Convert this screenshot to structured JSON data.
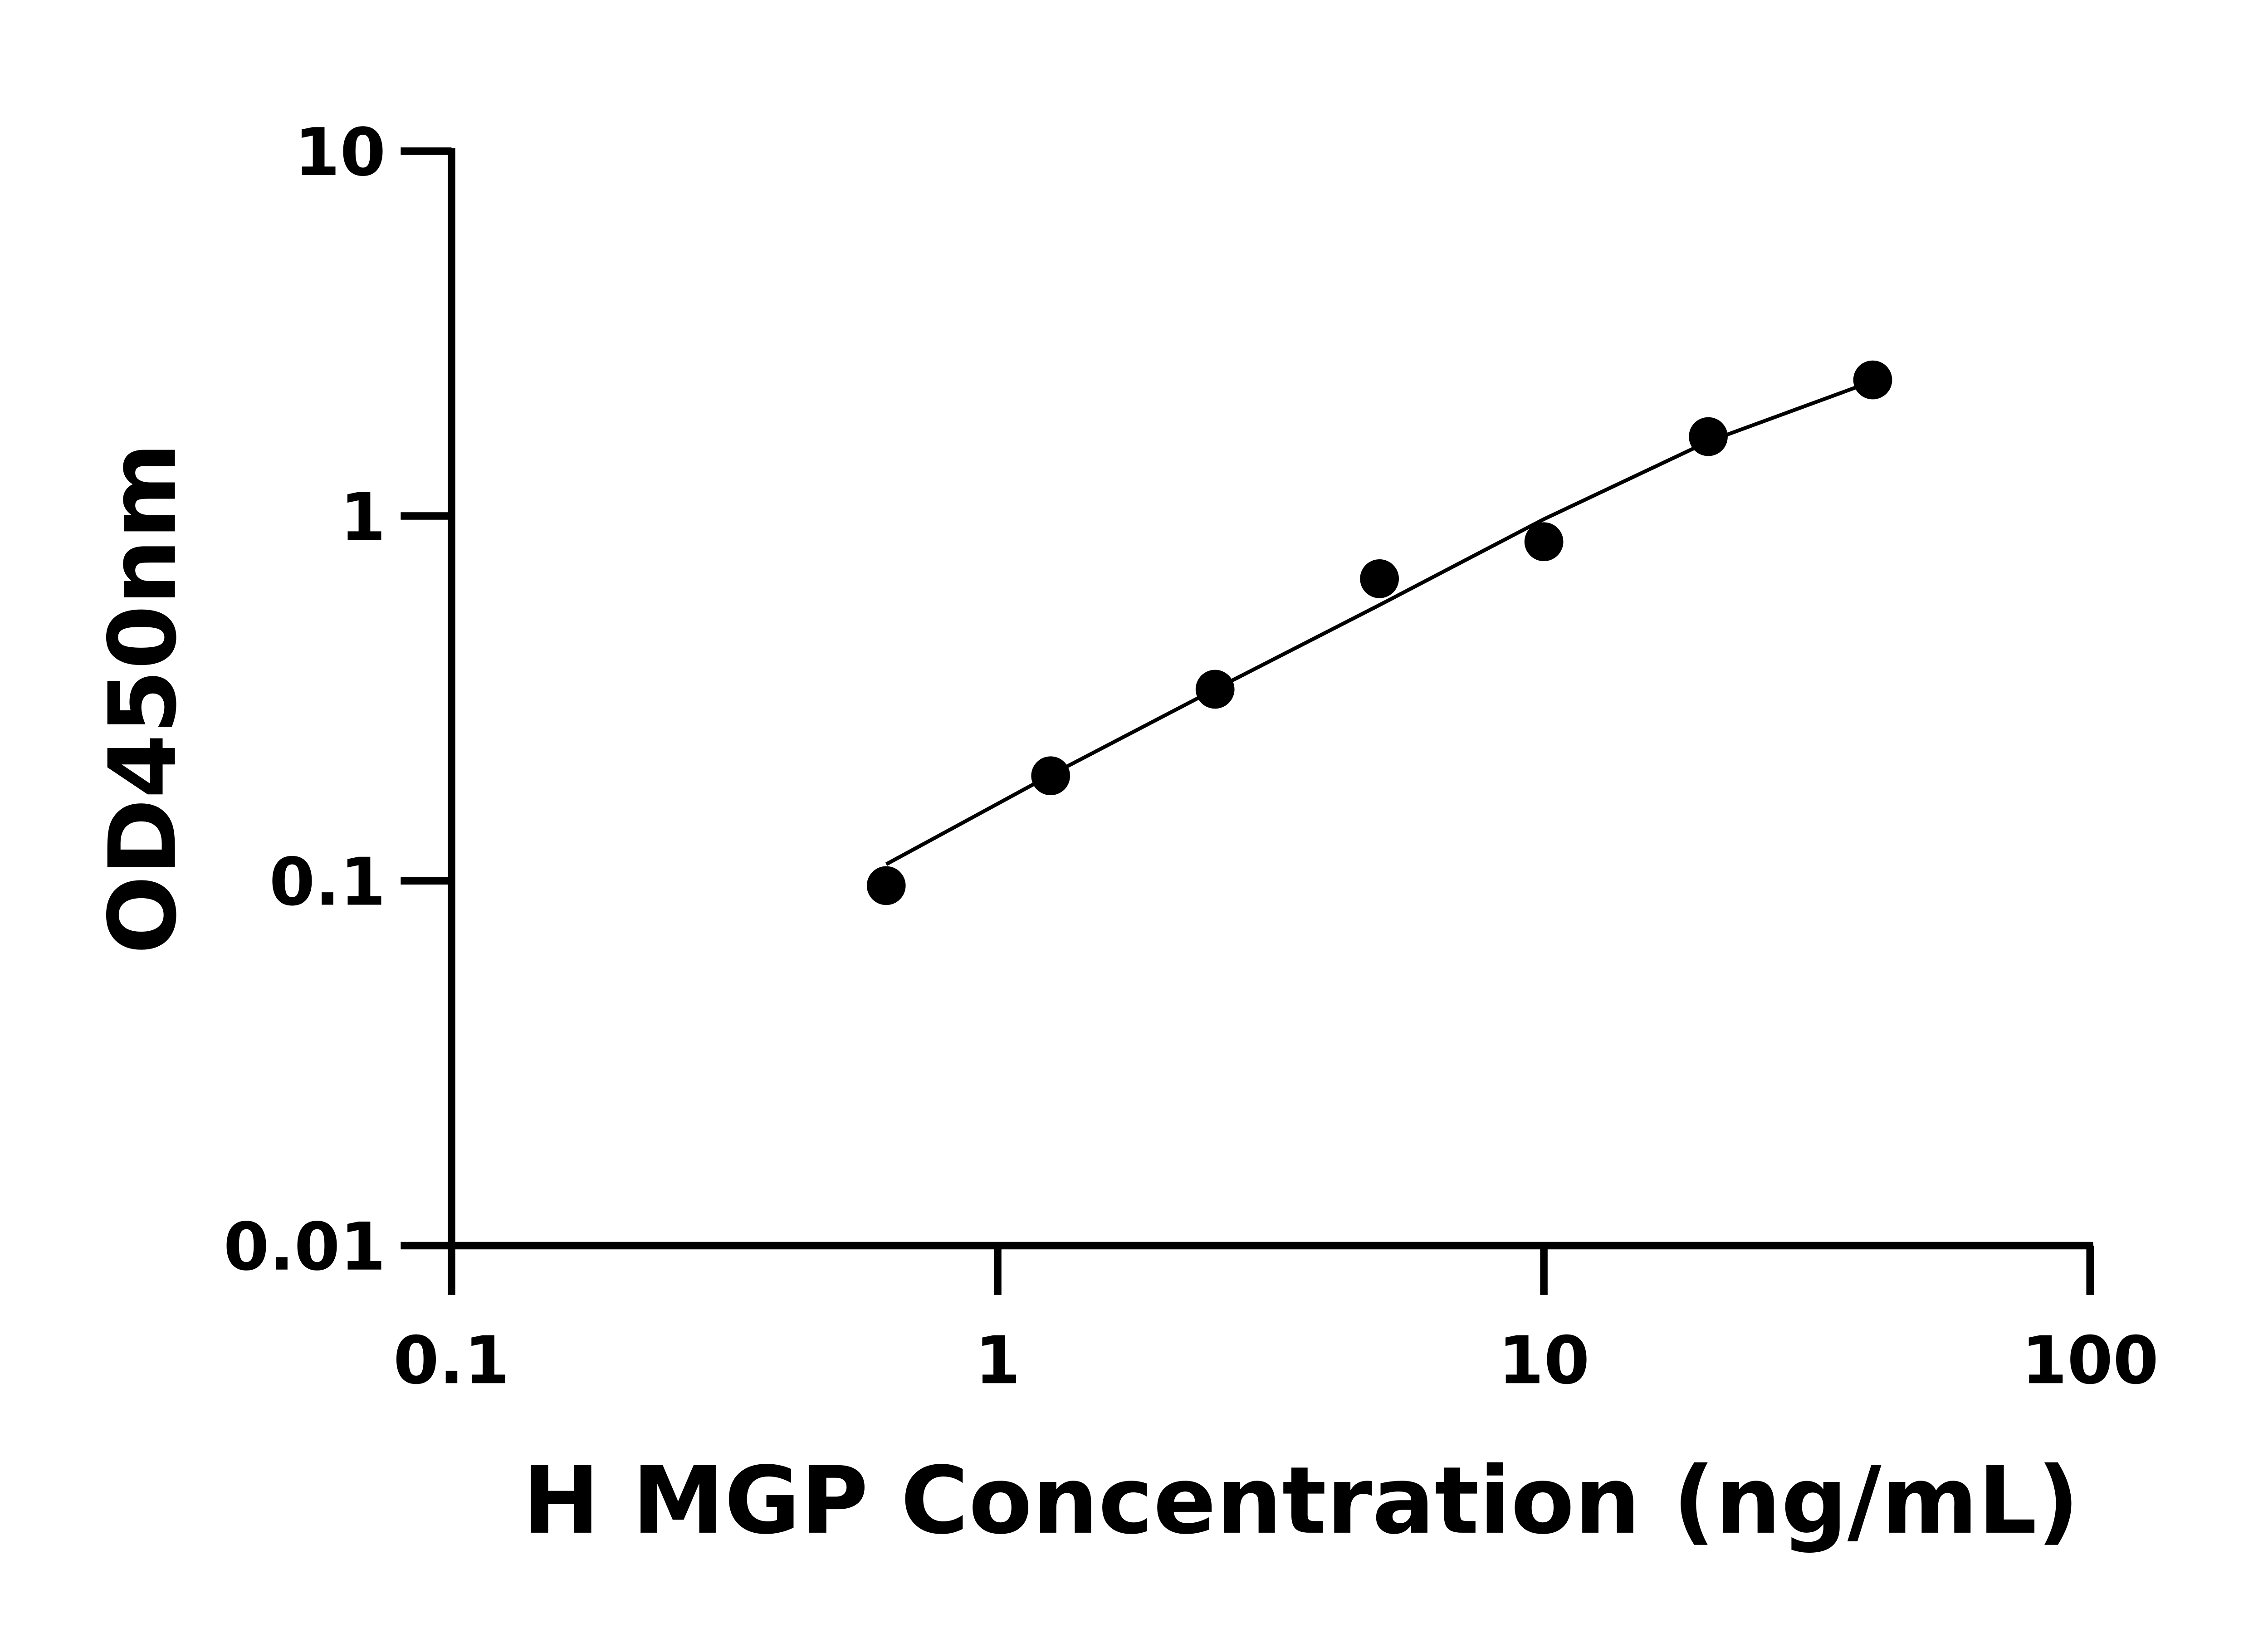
{
  "chart_data": {
    "type": "scatter",
    "xlabel": "H MGP Concentration (ng/mL)",
    "ylabel": "OD450nm",
    "xscale": "log",
    "yscale": "log",
    "xlim": [
      0.1,
      100
    ],
    "ylim": [
      0.01,
      10
    ],
    "xticks": [
      "0.1",
      "1",
      "10",
      "100"
    ],
    "yticks": [
      "0.01",
      "0.1",
      "1",
      "10"
    ],
    "grid": false,
    "colors": {
      "points": "#000000",
      "fit": "#000000"
    },
    "points": {
      "x": [
        0.625,
        1.25,
        2.5,
        5,
        10,
        20,
        40
      ],
      "y": [
        0.097,
        0.194,
        0.335,
        0.673,
        0.85,
        1.65,
        2.36
      ]
    },
    "fit_curve": {
      "x": [
        0.625,
        1.25,
        2.5,
        5,
        10,
        20,
        40
      ],
      "y": [
        0.111,
        0.195,
        0.335,
        0.57,
        0.98,
        1.6,
        2.34
      ]
    }
  }
}
